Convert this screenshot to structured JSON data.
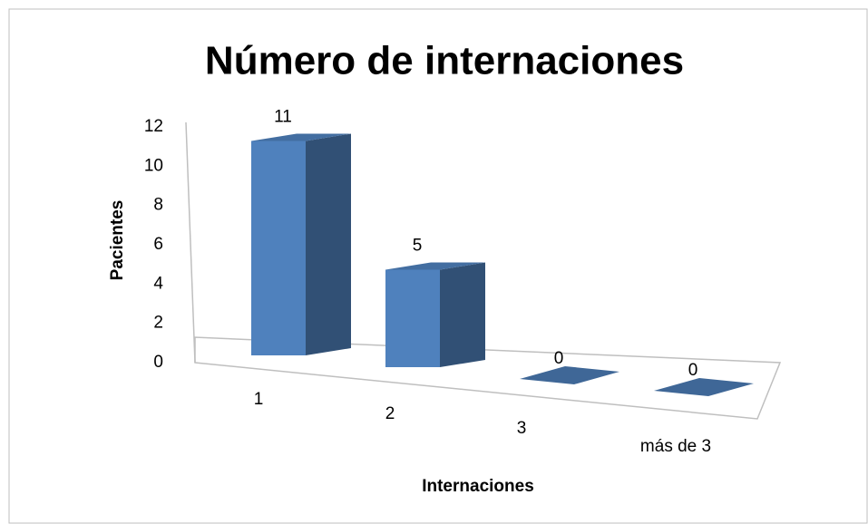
{
  "chart_data": {
    "type": "bar3d",
    "title": "Número de internaciones",
    "xlabel": "Internaciones",
    "ylabel": "Pacientes",
    "categories": [
      "1",
      "2",
      "3",
      "más de 3"
    ],
    "values": [
      11,
      5,
      0,
      0
    ],
    "color": "#4f81bd",
    "ylim": [
      0,
      12
    ],
    "yticks": [
      0,
      2,
      4,
      6,
      8,
      10,
      12
    ],
    "grid": false
  }
}
